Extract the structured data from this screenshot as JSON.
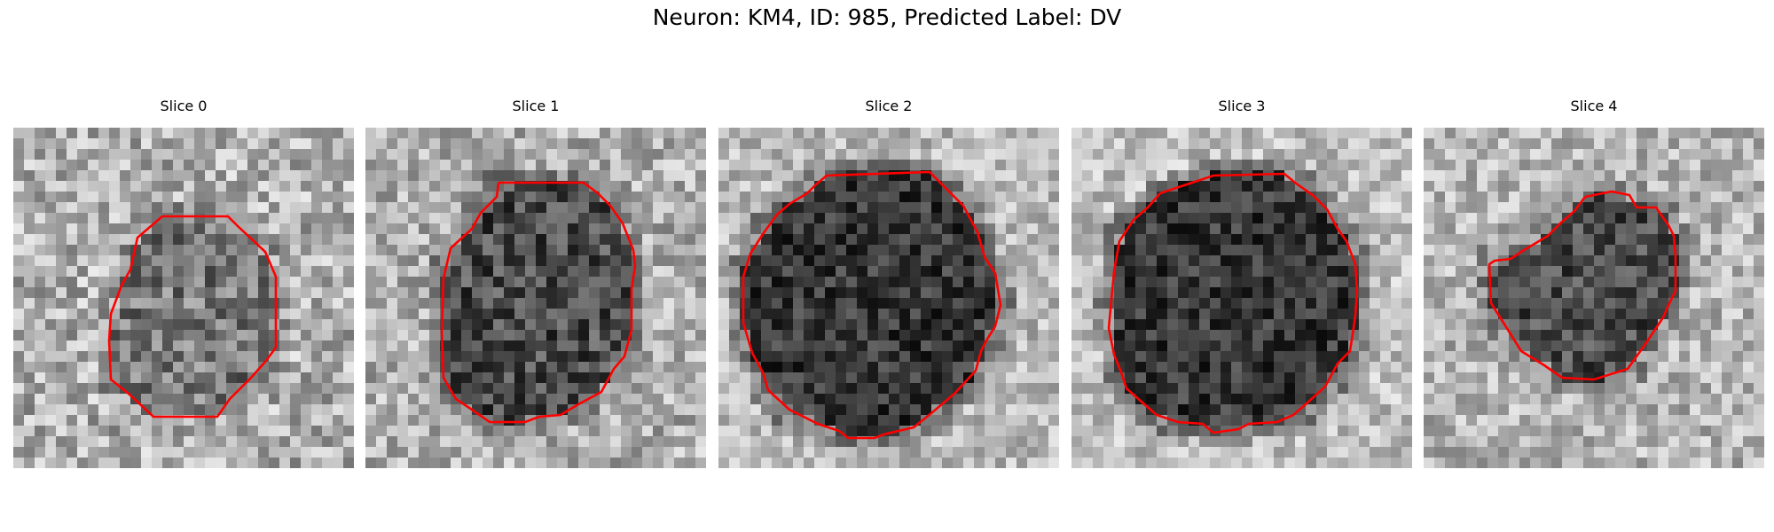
{
  "figure": {
    "title": "Neuron: KM4, ID: 985, Predicted Label: DV"
  },
  "slices": [
    {
      "title": "Slice 0"
    },
    {
      "title": "Slice 1"
    },
    {
      "title": "Slice 2"
    },
    {
      "title": "Slice 3"
    },
    {
      "title": "Slice 4"
    }
  ],
  "colors": {
    "contour": "#ff0000",
    "background": "#ffffff"
  }
}
